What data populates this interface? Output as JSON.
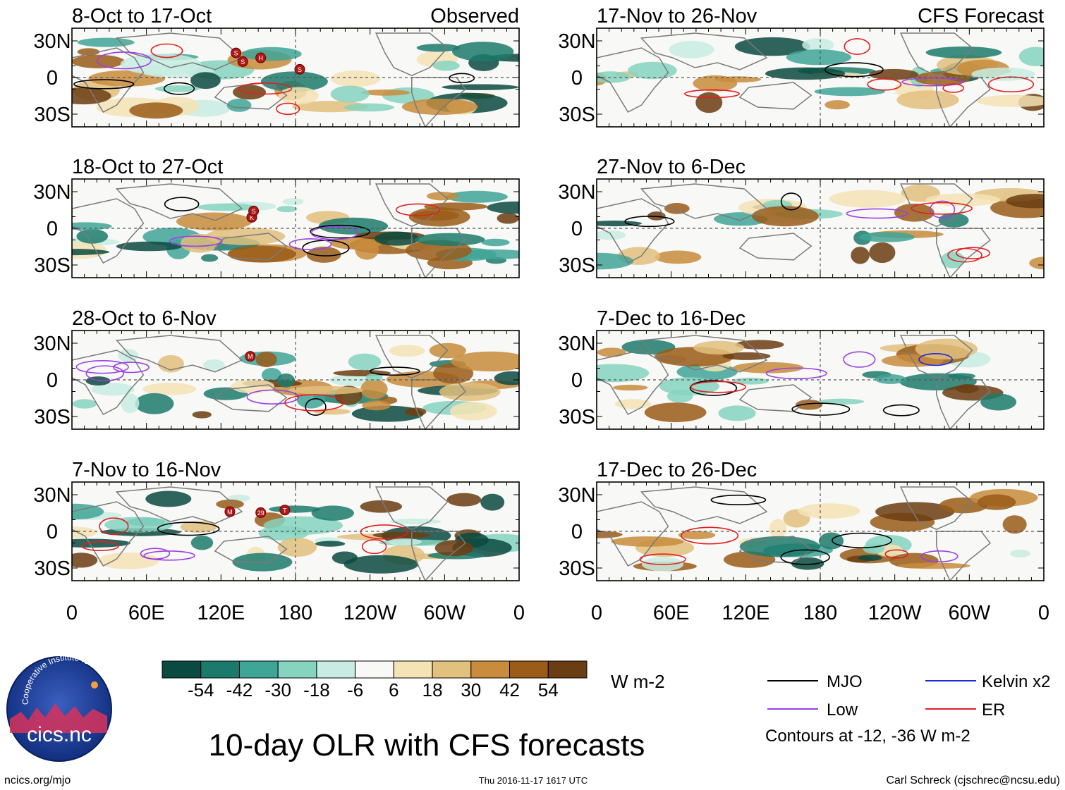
{
  "chart_data": {
    "type": "heatmap",
    "title": "10-day OLR with CFS forecasts",
    "variable": "OLR anomaly",
    "units": "W m-2",
    "column_headers": [
      "Observed",
      "CFS Forecast"
    ],
    "panels": [
      {
        "period": "8-Oct to 17-Oct",
        "source": "Observed",
        "storm_markers": [
          "S",
          "S",
          "H",
          "S"
        ]
      },
      {
        "period": "18-Oct to 27-Oct",
        "source": "Observed",
        "storm_markers": [
          "K",
          "S"
        ]
      },
      {
        "period": "28-Oct to 6-Nov",
        "source": "Observed",
        "storm_markers": [
          "M"
        ]
      },
      {
        "period": "7-Nov to 16-Nov",
        "source": "Observed",
        "storm_markers": [
          "M",
          "29",
          "T"
        ]
      },
      {
        "period": "17-Nov to 26-Nov",
        "source": "CFS Forecast"
      },
      {
        "period": "27-Nov to 6-Dec",
        "source": "CFS Forecast"
      },
      {
        "period": "7-Dec to 16-Dec",
        "source": "CFS Forecast"
      },
      {
        "period": "17-Dec to 26-Dec",
        "source": "CFS Forecast"
      }
    ],
    "x_ticks": [
      "0",
      "60E",
      "120E",
      "180",
      "120W",
      "60W",
      "0"
    ],
    "y_ticks": [
      "30N",
      "0",
      "30S"
    ],
    "colorbar": {
      "ticks": [
        "-54",
        "-42",
        "-30",
        "-18",
        "-6",
        "6",
        "18",
        "30",
        "42",
        "54"
      ],
      "colors": [
        "#0b4a40",
        "#1c7a6c",
        "#3fa596",
        "#86d3c0",
        "#c8ece2",
        "#f8f8f6",
        "#f4e3b5",
        "#e2c07e",
        "#c88c3c",
        "#9a5c18",
        "#6b3d12"
      ],
      "units": "W m-2"
    },
    "legend": [
      {
        "label": "MJO",
        "color": "#000000"
      },
      {
        "label": "Kelvin x2",
        "color": "#1a2ad8"
      },
      {
        "label": "Low",
        "color": "#9a40e6"
      },
      {
        "label": "ER",
        "color": "#e02020"
      }
    ],
    "contour_note": "Contours at -12, -36 W m-2"
  },
  "footer": {
    "site": "ncics.org/mjo",
    "timestamp": "Thu 2016-11-17 1617 UTC",
    "author": "Carl Schreck (cjschrec@ncsu.edu)"
  },
  "logo": {
    "name": "cics.nc",
    "ring_text": "Cooperative Institute for Climate and Satellites"
  }
}
